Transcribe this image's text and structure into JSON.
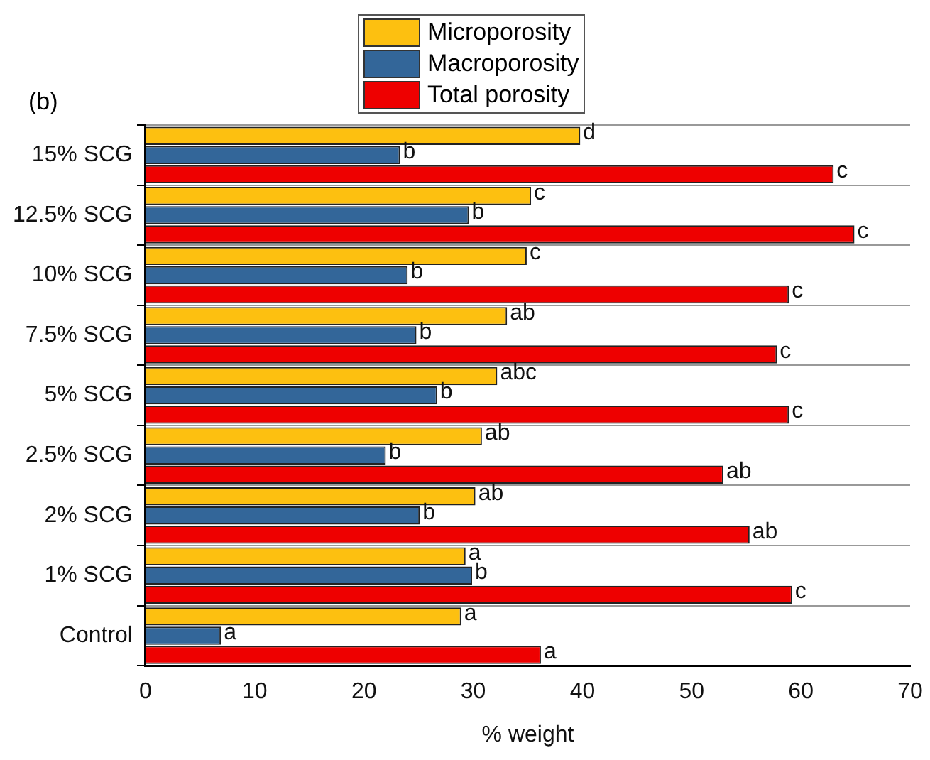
{
  "chart_data": {
    "type": "bar",
    "orientation": "horizontal",
    "xlabel": "% weight",
    "annotations": [
      "(b)"
    ],
    "categories": [
      "15% SCG",
      "12.5% SCG",
      "10% SCG",
      "7.5% SCG",
      "5% SCG",
      "2.5% SCG",
      "2% SCG",
      "1% SCG",
      "Control"
    ],
    "series": [
      {
        "name": "Microporosity",
        "color": "#fdc010",
        "values": [
          39.8,
          35.3,
          34.9,
          33.1,
          32.2,
          30.8,
          30.2,
          29.3,
          28.9
        ],
        "value_labels": [
          "d",
          "c",
          "c",
          "ab",
          "abc",
          "ab",
          "ab",
          "a",
          "a"
        ]
      },
      {
        "name": "Macroporosity",
        "color": "#336699",
        "values": [
          23.3,
          29.6,
          24.0,
          24.8,
          26.7,
          22.0,
          25.1,
          29.9,
          6.9
        ],
        "value_labels": [
          "b",
          "b",
          "b",
          "b",
          "b",
          "b",
          "b",
          "b",
          "a"
        ]
      },
      {
        "name": "Total porosity",
        "color": "#ee0000",
        "values": [
          63.0,
          64.9,
          58.9,
          57.8,
          58.9,
          52.9,
          55.3,
          59.2,
          36.2
        ],
        "value_labels": [
          "c",
          "c",
          "c",
          "c",
          "c",
          "ab",
          "ab",
          "c",
          "a"
        ]
      }
    ],
    "xlim": [
      0,
      70
    ],
    "xticks": [
      0,
      10,
      20,
      30,
      40,
      50,
      60,
      70
    ],
    "grid": "y",
    "legend": "top"
  }
}
